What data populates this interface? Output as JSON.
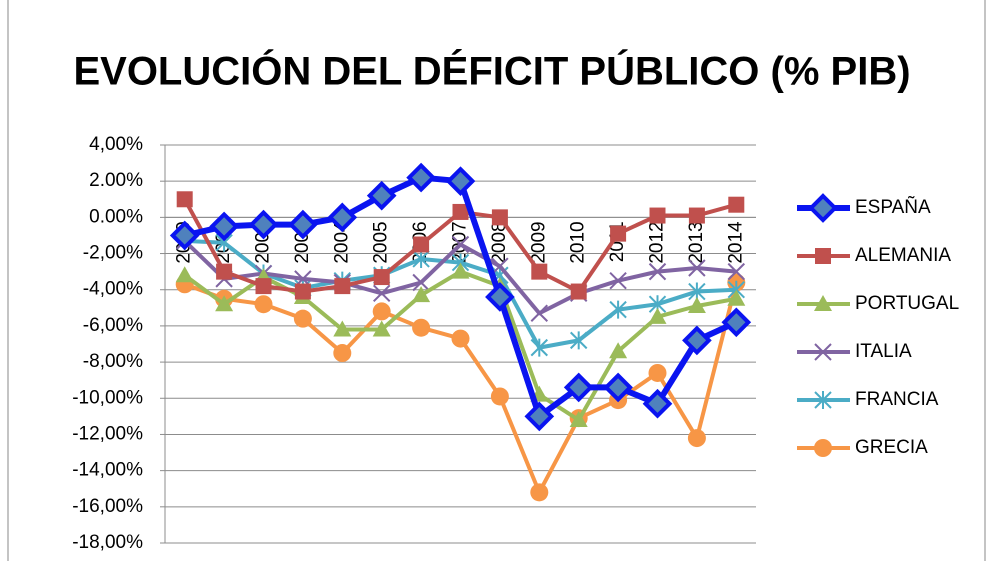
{
  "chart_data": {
    "type": "line",
    "title": "EVOLUCIÓN DEL DÉFICIT PÚBLICO (% PIB)",
    "categories": [
      "2000",
      "2001",
      "2002",
      "2003",
      "2004",
      "2005",
      "2006",
      "2007",
      "2008",
      "2009",
      "2010",
      "2011",
      "2012",
      "2013",
      "2014"
    ],
    "series": [
      {
        "name": "ESPAÑA",
        "color": "#0a14f0",
        "marker": "diamond",
        "line_width": 6,
        "values": [
          -1.0,
          -0.5,
          -0.4,
          -0.4,
          0.0,
          1.2,
          2.2,
          2.0,
          -4.4,
          -11.0,
          -9.4,
          -9.4,
          -10.3,
          -6.8,
          -5.8
        ]
      },
      {
        "name": "ALEMANIA",
        "color": "#c0504d",
        "marker": "square",
        "line_width": 4,
        "values": [
          1.0,
          -3.0,
          -3.8,
          -4.1,
          -3.8,
          -3.3,
          -1.5,
          0.3,
          0.0,
          -3.0,
          -4.1,
          -0.9,
          0.1,
          0.1,
          0.7
        ]
      },
      {
        "name": "PORTUGAL",
        "color": "#9bbb59",
        "marker": "triangle",
        "line_width": 4,
        "values": [
          -3.2,
          -4.8,
          -3.3,
          -4.4,
          -6.2,
          -6.2,
          -4.3,
          -3.0,
          -3.8,
          -9.8,
          -11.2,
          -7.4,
          -5.5,
          -4.9,
          -4.5
        ]
      },
      {
        "name": "ITALIA",
        "color": "#8064a2",
        "marker": "x",
        "line_width": 4,
        "values": [
          -1.3,
          -3.4,
          -3.1,
          -3.4,
          -3.6,
          -4.2,
          -3.6,
          -1.5,
          -2.7,
          -5.3,
          -4.2,
          -3.5,
          -3.0,
          -2.8,
          -3.0
        ]
      },
      {
        "name": "FRANCIA",
        "color": "#4bacc6",
        "marker": "star",
        "line_width": 4,
        "values": [
          -1.3,
          -1.4,
          -3.1,
          -3.9,
          -3.5,
          -3.2,
          -2.3,
          -2.5,
          -3.2,
          -7.2,
          -6.8,
          -5.1,
          -4.8,
          -4.1,
          -4.0
        ]
      },
      {
        "name": "GRECIA",
        "color": "#f79646",
        "marker": "circle",
        "line_width": 4,
        "values": [
          -3.7,
          -4.5,
          -4.8,
          -5.6,
          -7.5,
          -5.2,
          -6.1,
          -6.7,
          -9.9,
          -15.2,
          -11.1,
          -10.1,
          -8.6,
          -12.2,
          -3.6
        ]
      }
    ],
    "ylim": [
      -18,
      4
    ],
    "yticks": [
      {
        "value": 4,
        "label": "4,00%"
      },
      {
        "value": 2,
        "label": "2.00%"
      },
      {
        "value": 0,
        "label": "0.00%"
      },
      {
        "value": -2,
        "label": "-2,00%"
      },
      {
        "value": -4,
        "label": "-4,00%"
      },
      {
        "value": -6,
        "label": "-6,00%"
      },
      {
        "value": -8,
        "label": "-8,00%"
      },
      {
        "value": -10,
        "label": "-10,00%"
      },
      {
        "value": -12,
        "label": "-12,00%"
      },
      {
        "value": -14,
        "label": "-14,00%"
      },
      {
        "value": -16,
        "label": "-16,00%"
      },
      {
        "value": -18,
        "label": "-18,00%"
      }
    ],
    "grid": true,
    "legend": "right"
  }
}
